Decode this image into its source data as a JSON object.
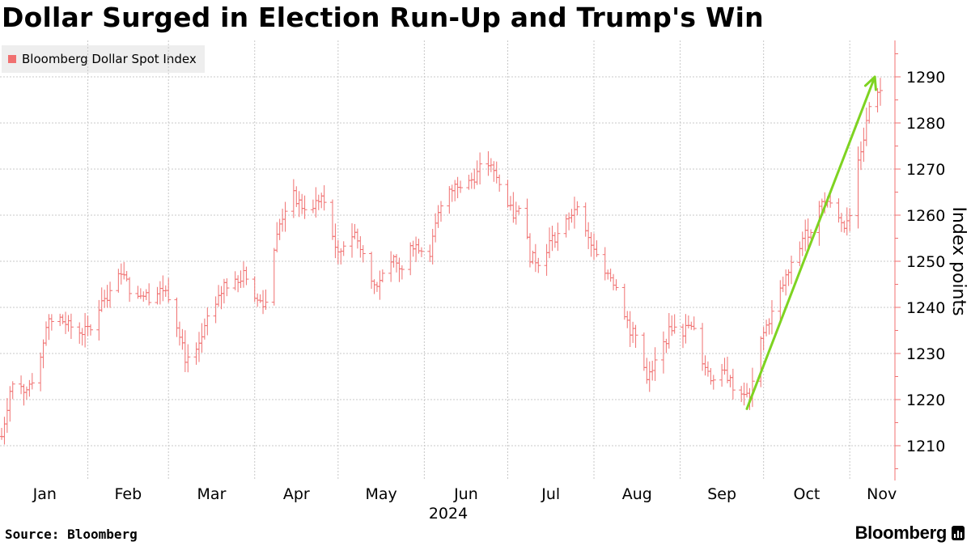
{
  "title": "Dollar Surged in Election Run-Up and Trump's Win",
  "legend": {
    "label": "Bloomberg Dollar Spot Index",
    "color": "#f07070"
  },
  "source": "Source: Bloomberg",
  "brand": "Bloomberg",
  "chart_data": {
    "type": "ohlc",
    "title": "Dollar Surged in Election Run-Up and Trump's Win",
    "series_name": "Bloomberg Dollar Spot Index",
    "xlabel": "2024",
    "ylabel": "Index points",
    "ylim": [
      1203,
      1298
    ],
    "yticks": [
      1210,
      1220,
      1230,
      1240,
      1250,
      1260,
      1270,
      1280,
      1290
    ],
    "xticks": [
      "Jan",
      "Feb",
      "Mar",
      "Apr",
      "May",
      "Jun",
      "Jul",
      "Aug",
      "Sep",
      "Oct",
      "Nov"
    ],
    "grid": true,
    "x_domain_days": [
      0,
      316
    ],
    "bar_color": "#f07070",
    "annotation": {
      "type": "arrow",
      "color": "#7ed321",
      "from": {
        "day": 268,
        "value": 1218
      },
      "to": {
        "day": 314,
        "value": 1290
      }
    },
    "anchors": [
      [
        0,
        1212
      ],
      [
        3,
        1222
      ],
      [
        6,
        1225
      ],
      [
        9,
        1221
      ],
      [
        13,
        1226
      ],
      [
        16,
        1236
      ],
      [
        20,
        1238
      ],
      [
        24,
        1236
      ],
      [
        28,
        1235
      ],
      [
        33,
        1235
      ],
      [
        36,
        1242
      ],
      [
        40,
        1243
      ],
      [
        43,
        1248
      ],
      [
        46,
        1244
      ],
      [
        50,
        1243
      ],
      [
        54,
        1242
      ],
      [
        58,
        1244
      ],
      [
        61,
        1242
      ],
      [
        63,
        1236
      ],
      [
        66,
        1229
      ],
      [
        70,
        1230
      ],
      [
        74,
        1237
      ],
      [
        77,
        1240
      ],
      [
        80,
        1245
      ],
      [
        84,
        1245
      ],
      [
        87,
        1247
      ],
      [
        90,
        1242
      ],
      [
        95,
        1241
      ],
      [
        97,
        1250
      ],
      [
        100,
        1258
      ],
      [
        104,
        1265
      ],
      [
        108,
        1262
      ],
      [
        112,
        1262
      ],
      [
        115,
        1264
      ],
      [
        118,
        1258
      ],
      [
        121,
        1251
      ],
      [
        124,
        1255
      ],
      [
        127,
        1256
      ],
      [
        131,
        1250
      ],
      [
        134,
        1245
      ],
      [
        138,
        1247
      ],
      [
        141,
        1250
      ],
      [
        144,
        1248
      ],
      [
        147,
        1254
      ],
      [
        151,
        1253
      ],
      [
        154,
        1252
      ],
      [
        157,
        1260
      ],
      [
        160,
        1264
      ],
      [
        164,
        1267
      ],
      [
        168,
        1267
      ],
      [
        171,
        1269
      ],
      [
        174,
        1272
      ],
      [
        178,
        1268
      ],
      [
        181,
        1263
      ],
      [
        184,
        1260
      ],
      [
        187,
        1261
      ],
      [
        190,
        1251
      ],
      [
        193,
        1250
      ],
      [
        197,
        1254
      ],
      [
        200,
        1256
      ],
      [
        204,
        1259
      ],
      [
        207,
        1263
      ],
      [
        210,
        1256
      ],
      [
        213,
        1252
      ],
      [
        216,
        1249
      ],
      [
        219,
        1247
      ],
      [
        222,
        1243
      ],
      [
        226,
        1235
      ],
      [
        229,
        1233
      ],
      [
        232,
        1224
      ],
      [
        235,
        1228
      ],
      [
        238,
        1232
      ],
      [
        241,
        1236
      ],
      [
        244,
        1234
      ],
      [
        247,
        1236
      ],
      [
        250,
        1234
      ],
      [
        253,
        1226
      ],
      [
        257,
        1224
      ],
      [
        260,
        1226
      ],
      [
        263,
        1223
      ],
      [
        266,
        1222
      ],
      [
        269,
        1220
      ],
      [
        272,
        1231
      ],
      [
        275,
        1236
      ],
      [
        278,
        1240
      ],
      [
        281,
        1245
      ],
      [
        285,
        1250
      ],
      [
        288,
        1255
      ],
      [
        291,
        1257
      ],
      [
        294,
        1262
      ],
      [
        297,
        1263
      ],
      [
        300,
        1260
      ],
      [
        303,
        1258
      ],
      [
        306,
        1262
      ],
      [
        308,
        1272
      ],
      [
        311,
        1280
      ],
      [
        313,
        1287
      ],
      [
        315,
        1287
      ]
    ]
  }
}
